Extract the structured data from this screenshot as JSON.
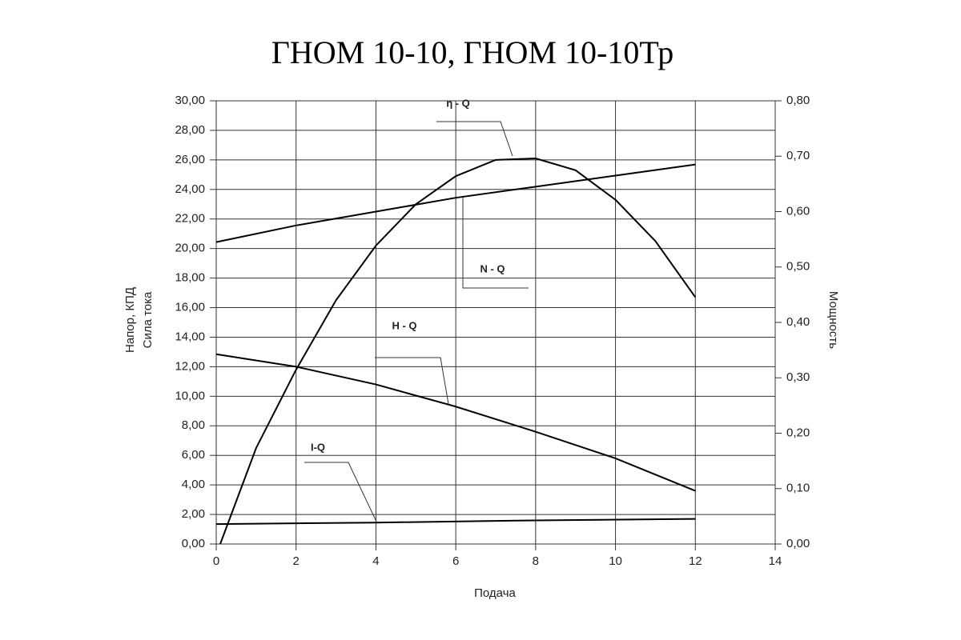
{
  "chart_data": {
    "type": "line",
    "title": "ГНОМ 10-10, ГНОМ 10-10Тр",
    "x_label": "Подача",
    "y_label": [
      "Напор, КПД",
      "Сила тока"
    ],
    "y2_label": "Мощность",
    "xlim": [
      0,
      14
    ],
    "xticks": [
      0,
      2,
      4,
      6,
      8,
      10,
      12,
      14
    ],
    "ylim": [
      0,
      30
    ],
    "yticks": [
      {
        "value": 0,
        "label": "0,00"
      },
      {
        "value": 2,
        "label": "2,00"
      },
      {
        "value": 4,
        "label": "4,00"
      },
      {
        "value": 6,
        "label": "6,00"
      },
      {
        "value": 8,
        "label": "8,00"
      },
      {
        "value": 10,
        "label": "10,00"
      },
      {
        "value": 12,
        "label": "12,00"
      },
      {
        "value": 14,
        "label": "14,00"
      },
      {
        "value": 16,
        "label": "16,00"
      },
      {
        "value": 18,
        "label": "18,00"
      },
      {
        "value": 20,
        "label": "20,00"
      },
      {
        "value": 22,
        "label": "22,00"
      },
      {
        "value": 24,
        "label": "24,00"
      },
      {
        "value": 26,
        "label": "26,00"
      },
      {
        "value": 28,
        "label": "28,00"
      },
      {
        "value": 30,
        "label": "30,00"
      }
    ],
    "y2lim": [
      0,
      0.8
    ],
    "y2ticks": [
      {
        "value": 0,
        "label": "0,00"
      },
      {
        "value": 0.1,
        "label": "0,10"
      },
      {
        "value": 0.2,
        "label": "0,20"
      },
      {
        "value": 0.3,
        "label": "0,30"
      },
      {
        "value": 0.4,
        "label": "0,40"
      },
      {
        "value": 0.5,
        "label": "0,50"
      },
      {
        "value": 0.6,
        "label": "0,60"
      },
      {
        "value": 0.7,
        "label": "0,70"
      },
      {
        "value": 0.8,
        "label": "0,80"
      }
    ],
    "grid": true,
    "series": [
      {
        "name": "η - Q",
        "color": "#000000",
        "x": [
          0.1,
          1,
          2,
          3,
          4,
          5,
          6,
          7,
          8,
          9,
          10,
          11,
          12
        ],
        "values": [
          0,
          6.5,
          11.8,
          16.5,
          20.2,
          23,
          24.9,
          26,
          26.1,
          25.3,
          23.3,
          20.5,
          16.7
        ]
      },
      {
        "name": "N - Q",
        "color": "#000000",
        "axis": "y2",
        "x": [
          0,
          2,
          4,
          6,
          8,
          10,
          12
        ],
        "values": [
          0.545,
          0.575,
          0.6,
          0.625,
          0.645,
          0.665,
          0.685
        ]
      },
      {
        "name": "H - Q",
        "color": "#000000",
        "x": [
          0,
          2,
          4,
          6,
          8,
          10,
          12
        ],
        "values": [
          12.85,
          12.0,
          10.8,
          9.3,
          7.6,
          5.8,
          3.6
        ]
      },
      {
        "name": "I-Q",
        "color": "#000000",
        "x": [
          0,
          4,
          8,
          12
        ],
        "values": [
          1.35,
          1.45,
          1.6,
          1.7
        ]
      }
    ]
  }
}
